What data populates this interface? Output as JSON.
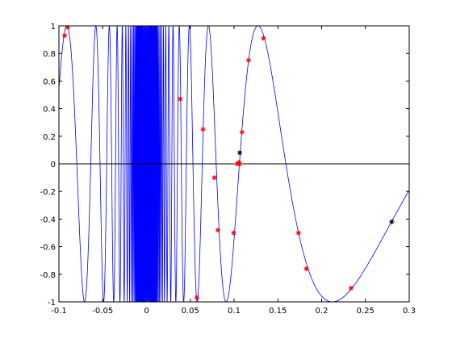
{
  "chart_data": {
    "type": "line",
    "title": "",
    "xlabel": "",
    "ylabel": "",
    "xlim": [
      -0.1,
      0.3
    ],
    "ylim": [
      -1,
      1
    ],
    "grid": false,
    "x_ticks": [
      -0.1,
      -0.05,
      0,
      0.05,
      0.1,
      0.15,
      0.2,
      0.25,
      0.3
    ],
    "x_tick_labels": [
      "-0.1",
      "-0.05",
      "0",
      "0.05",
      "0.1",
      "0.15",
      "0.2",
      "0.25",
      "0.3"
    ],
    "y_ticks": [
      1,
      0.8,
      0.6,
      0.4,
      0.2,
      0,
      -0.2,
      -0.4,
      -0.6,
      -0.8,
      -1
    ],
    "y_tick_labels": [
      "1",
      "0.8",
      "0.6",
      "0.4",
      "0.2",
      "0",
      "-0.2",
      "-0.4",
      "-0.6",
      "-0.8",
      "-1"
    ],
    "series": [
      {
        "style": "curve",
        "color": "#0000ff",
        "function": "sin(1/x)",
        "x_range": [
          -0.1,
          0.3
        ]
      },
      {
        "style": "line",
        "color": "#000000",
        "x": [
          -0.1,
          0.3
        ],
        "y": [
          0,
          0
        ]
      },
      {
        "style": "markers",
        "marker": "*",
        "color": "#ff0000",
        "x": [
          -0.0935,
          -0.09,
          0.0385,
          0.0575,
          0.0645,
          0.0775,
          0.0815,
          0.0995,
          0.1035,
          0.1055,
          0.1065,
          0.109,
          0.1165,
          0.1335,
          0.1735,
          0.1825,
          0.2335
        ],
        "y": [
          0.93,
          0.99,
          0.47,
          -0.97,
          0.25,
          -0.1,
          -0.48,
          -0.5,
          0.0,
          0.01,
          0.0,
          0.23,
          0.75,
          0.91,
          -0.5,
          -0.76,
          -0.9
        ]
      },
      {
        "style": "markers",
        "marker": "*",
        "color": "#000000",
        "x": [
          0.1065,
          0.28
        ],
        "y": [
          0.08,
          -0.42
        ]
      }
    ]
  }
}
